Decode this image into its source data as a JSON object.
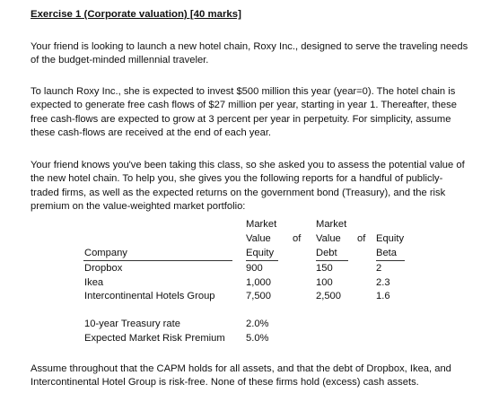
{
  "heading": "Exercise 1 (Corporate valuation) [40 marks]",
  "paragraphs": {
    "p1": "Your friend is looking to launch a new hotel chain, Roxy Inc., designed to serve the traveling needs of the budget-minded millennial traveler.",
    "p2": "To launch Roxy Inc., she is expected to invest $500 million this year (year=0). The hotel chain is expected to generate free cash flows of $27 million per year, starting in year 1. Thereafter, these free cash-flows are expected to grow at 3 percent per year in perpetuity. For simplicity, assume these cash-flows are received at the end of each year.",
    "p3": "Your friend knows you've been taking this class, so she asked you to assess the potential value of the new hotel chain. To help you, she gives you the following reports for a handful of publicly-traded firms, as well as the expected returns on the government bond (Treasury), and the risk premium on the value-weighted market portfolio:",
    "p4": "Assume throughout that the CAPM holds for all assets, and that the debt of Dropbox, Ikea, and Intercontinental Hotel Group is risk-free. None of these firms hold (excess) cash assets."
  },
  "table": {
    "header_top": [
      "Market",
      "Market"
    ],
    "header_mid": [
      "Value",
      "of",
      "Value",
      "of",
      "Equity"
    ],
    "columns": [
      "Company",
      "Equity",
      "Debt",
      "Beta"
    ],
    "rows": [
      {
        "company": "Dropbox",
        "equity": "900",
        "debt": "150",
        "beta": "2"
      },
      {
        "company": "Ikea",
        "equity": "1,000",
        "debt": "100",
        "beta": "2.3"
      },
      {
        "company": "Intercontinental Hotels Group",
        "equity": "7,500",
        "debt": "2,500",
        "beta": "1.6"
      }
    ]
  },
  "rates": [
    {
      "label": "10-year Treasury rate",
      "value": "2.0%"
    },
    {
      "label": "Expected Market Risk Premium",
      "value": "5.0%"
    }
  ]
}
